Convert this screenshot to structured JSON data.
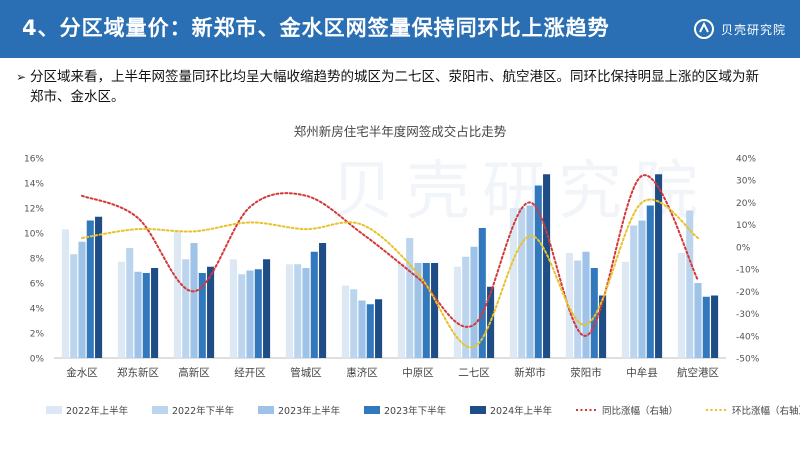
{
  "header": {
    "title": "4、分区域量价：新郑市、金水区网签量保持同环比上涨趋势",
    "logo_text": "贝壳研究院",
    "bg_color": "#2a6fb3"
  },
  "summary": {
    "bullet": "➢",
    "text": "分区域来看，上半年网签量同环比均呈大幅收缩趋势的城区为二七区、荥阳市、航空港区。同环比保持明显上涨的区域为新郑市、金水区。"
  },
  "watermark": "贝壳研究院",
  "chart_data": {
    "type": "bar",
    "title": "郑州新房住宅半年度网签成交占比走势",
    "categories": [
      "金水区",
      "郑东新区",
      "高新区",
      "经开区",
      "管城区",
      "惠济区",
      "中原区",
      "二七区",
      "新郑市",
      "荥阳市",
      "中牟县",
      "航空港区"
    ],
    "series": [
      {
        "name": "2022年上半年",
        "color": "#dde8f5",
        "values": [
          10.3,
          7.7,
          10.1,
          7.9,
          7.5,
          5.8,
          7.6,
          7.3,
          12.0,
          8.4,
          7.7,
          8.4
        ]
      },
      {
        "name": "2022年下半年",
        "color": "#bcd5ee",
        "values": [
          8.3,
          8.8,
          7.9,
          6.7,
          7.5,
          5.5,
          9.6,
          8.1,
          12.0,
          7.8,
          10.6,
          11.8
        ]
      },
      {
        "name": "2023年上半年",
        "color": "#9fc3e8",
        "values": [
          9.3,
          6.9,
          9.2,
          7.0,
          7.2,
          4.6,
          7.6,
          8.9,
          12.2,
          8.5,
          11.0,
          6.0
        ]
      },
      {
        "name": "2023年下半年",
        "color": "#3278bd",
        "values": [
          11.0,
          6.8,
          6.8,
          7.1,
          8.5,
          4.3,
          7.6,
          10.4,
          13.8,
          7.2,
          12.2,
          4.9
        ]
      },
      {
        "name": "2024年上半年",
        "color": "#1f4e86",
        "values": [
          11.3,
          7.2,
          7.3,
          7.9,
          9.2,
          4.7,
          7.6,
          5.7,
          14.7,
          5.0,
          14.7,
          5.0
        ]
      }
    ],
    "lines": [
      {
        "name": "同比涨幅（右轴）",
        "color": "#d23a3a",
        "style": "dotted",
        "values": [
          23,
          13,
          -20,
          18,
          23,
          6,
          -14,
          -35,
          20,
          -40,
          32,
          -15
        ]
      },
      {
        "name": "环比涨幅（右轴）",
        "color": "#e8c22a",
        "style": "dotted",
        "values": [
          4,
          8,
          7,
          11,
          8,
          10,
          -12,
          -45,
          5,
          -35,
          20,
          4
        ]
      }
    ],
    "ylim": [
      0,
      16
    ],
    "yticks": [
      "0%",
      "2%",
      "4%",
      "6%",
      "8%",
      "10%",
      "12%",
      "14%",
      "16%"
    ],
    "y2lim": [
      -50,
      40
    ],
    "y2ticks": [
      "-50%",
      "-40%",
      "-30%",
      "-20%",
      "-10%",
      "0%",
      "10%",
      "20%",
      "30%",
      "40%"
    ],
    "legend_position": "bottom"
  }
}
